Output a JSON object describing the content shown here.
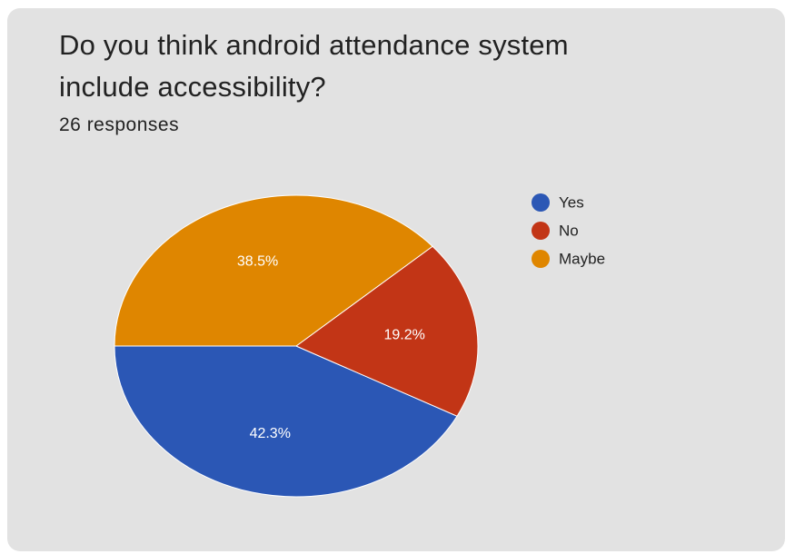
{
  "question": {
    "line1": "Do you think android attendance system",
    "line2": "include accessibility?"
  },
  "response_count": "26 responses",
  "chart_data": {
    "type": "pie",
    "categories": [
      "Yes",
      "No",
      "Maybe"
    ],
    "values": [
      42.3,
      19.2,
      38.5
    ],
    "labels": [
      "42.3%",
      "19.2%",
      "38.5%"
    ],
    "colors": [
      "#2b57b5",
      "#c23516",
      "#df8600"
    ],
    "legend_position": "right"
  }
}
